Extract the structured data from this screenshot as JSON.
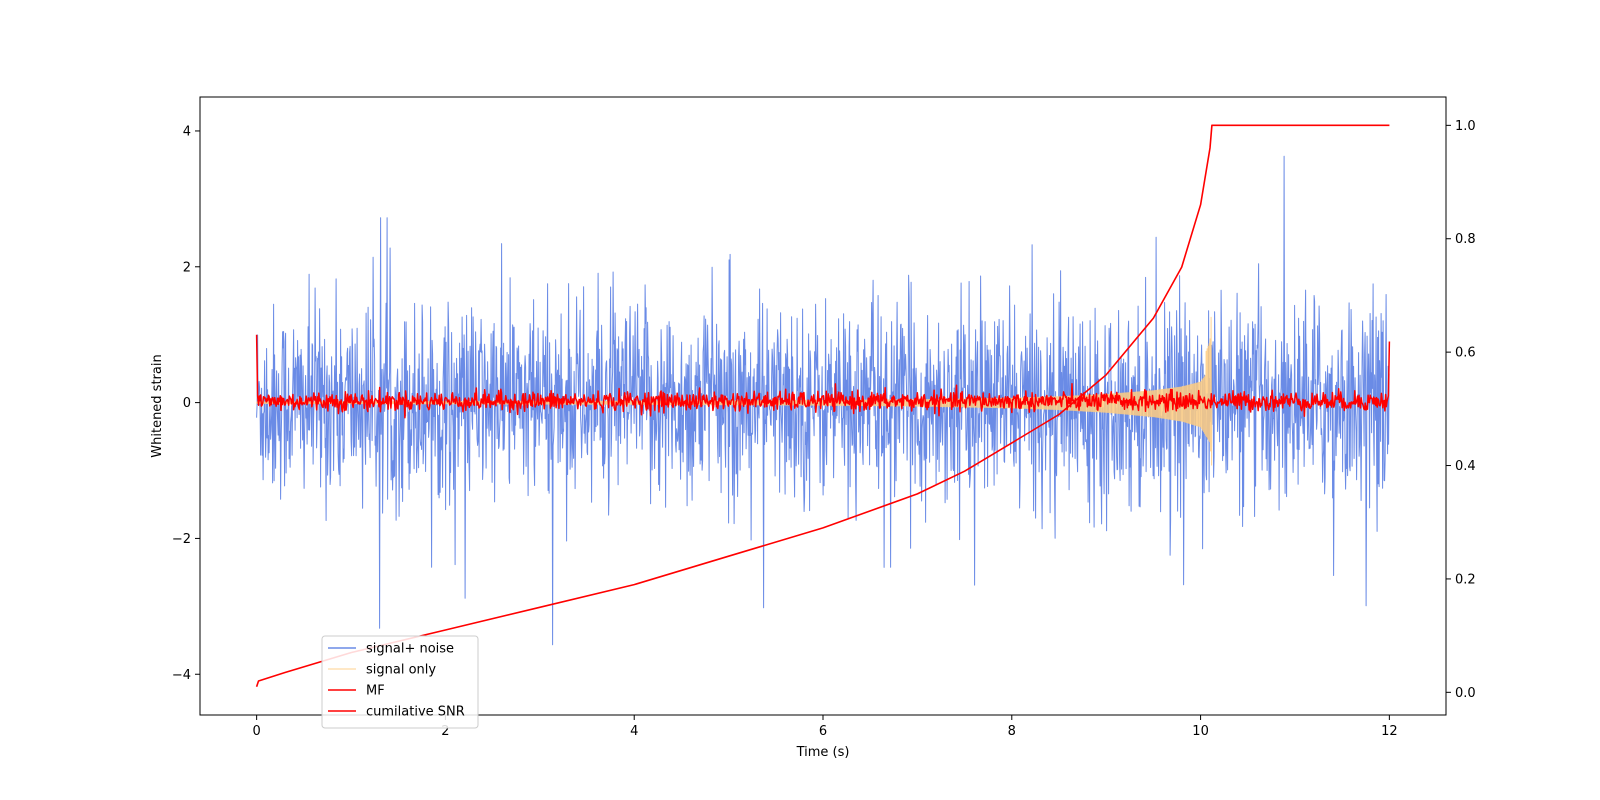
{
  "chart_data": {
    "type": "line",
    "xlabel": "Time (s)",
    "ylabel": "Whitened strain",
    "xlim": [
      -0.6,
      12.6
    ],
    "ylim": [
      -4.6,
      4.5
    ],
    "y2lim": [
      -0.04,
      1.05
    ],
    "x_ticks": [
      0,
      2,
      4,
      6,
      8,
      10,
      12
    ],
    "y_ticks": [
      -4,
      -2,
      0,
      2,
      4
    ],
    "y2_ticks": [
      0.0,
      0.2,
      0.4,
      0.6,
      0.8,
      1.0
    ],
    "x_tick_labels": [
      "0",
      "2",
      "4",
      "6",
      "8",
      "10",
      "12"
    ],
    "y_tick_labels": [
      "−4",
      "−2",
      "0",
      "2",
      "4"
    ],
    "y2_tick_labels": [
      "0.0",
      "0.2",
      "0.4",
      "0.6",
      "0.8",
      "1.0"
    ],
    "grid": false,
    "legend_position": "lower-left",
    "series": [
      {
        "name": "signal+ noise",
        "axis": "left",
        "color": "#6a8be6",
        "kind": "noise",
        "t_range": [
          0,
          12
        ],
        "typical_amplitude": 1.3,
        "max_abs": 4.1
      },
      {
        "name": "signal only",
        "axis": "left",
        "color": "#ffcc80",
        "kind": "chirp",
        "t_range": [
          0,
          10.12
        ],
        "envelope": {
          "t": [
            0,
            2,
            4,
            6,
            7,
            8,
            8.5,
            9,
            9.5,
            9.8,
            10.0,
            10.1,
            10.12
          ],
          "amp": [
            0.02,
            0.03,
            0.04,
            0.06,
            0.08,
            0.12,
            0.16,
            0.22,
            0.32,
            0.42,
            0.55,
            0.9,
            1.5
          ]
        }
      },
      {
        "name": "MF",
        "axis": "left",
        "color": "#ff0000",
        "kind": "mf",
        "t_range": [
          0,
          12
        ],
        "start_value": 1.0,
        "end_value": 0.9,
        "typical_amplitude": 0.13
      },
      {
        "name": "cumilative SNR",
        "axis": "right",
        "color": "#ff0000",
        "kind": "line",
        "t": [
          0,
          0.02,
          0.3,
          1,
          2,
          3,
          4,
          5,
          6,
          7,
          7.5,
          8,
          8.5,
          9,
          9.5,
          9.8,
          10.0,
          10.1,
          10.12,
          12.0
        ],
        "values": [
          0.01,
          0.02,
          0.035,
          0.07,
          0.11,
          0.15,
          0.19,
          0.24,
          0.29,
          0.35,
          0.39,
          0.44,
          0.49,
          0.56,
          0.66,
          0.75,
          0.86,
          0.96,
          1.0,
          1.0
        ]
      }
    ]
  }
}
